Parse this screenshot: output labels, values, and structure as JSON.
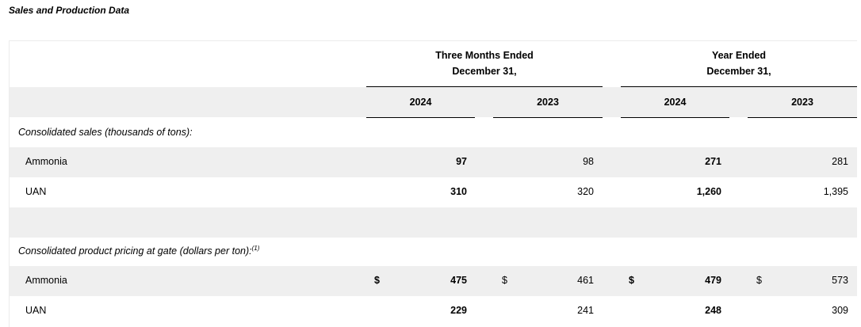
{
  "caption": "Sales and Production Data",
  "headers": {
    "group1_line1": "Three Months Ended",
    "group1_line2": "December 31,",
    "group2_line1": "Year Ended",
    "group2_line2": "December 31,",
    "years": [
      "2024",
      "2023",
      "2024",
      "2023"
    ]
  },
  "sections": [
    {
      "title": "Consolidated sales (thousands of tons):",
      "footnote": "",
      "rows": [
        {
          "label": "Ammonia",
          "values": [
            "97",
            "98",
            "271",
            "281"
          ]
        },
        {
          "label": "UAN",
          "values": [
            "310",
            "320",
            "1,260",
            "1,395"
          ]
        }
      ]
    },
    {
      "title": "Consolidated product pricing at gate (dollars per ton):",
      "footnote": "(1)",
      "rows": [
        {
          "label": "Ammonia",
          "currency": [
            "$",
            "$",
            "$",
            "$"
          ],
          "values": [
            "475",
            "461",
            "479",
            "573"
          ]
        },
        {
          "label": "UAN",
          "values": [
            "229",
            "241",
            "248",
            "309"
          ]
        }
      ]
    }
  ]
}
